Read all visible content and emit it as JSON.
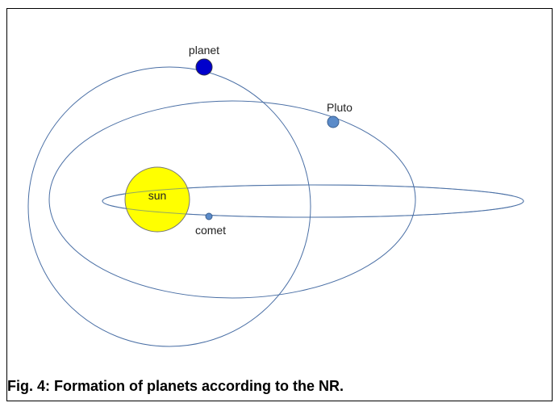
{
  "labels": {
    "planet": "planet",
    "pluto": "Pluto",
    "sun": "sun",
    "comet": "comet"
  },
  "caption": "Fig. 4:  Formation of planets according to the NR."
}
